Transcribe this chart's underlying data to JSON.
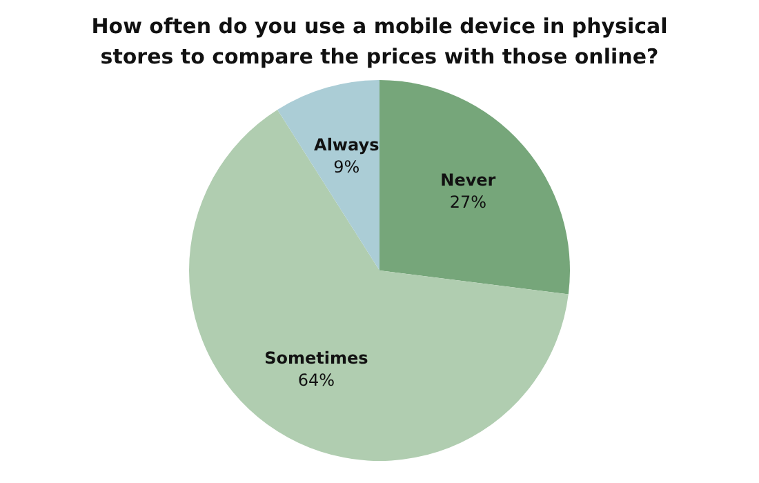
{
  "chart_data": {
    "type": "pie",
    "title": "How often do you use a mobile device in physical stores to compare the prices with those online?",
    "categories": [
      "Never",
      "Sometimes",
      "Always"
    ],
    "values": [
      27,
      64,
      9
    ],
    "value_labels": [
      "27%",
      "64%",
      "9%"
    ],
    "colors": [
      "#76a67a",
      "#b0cdb0",
      "#abcdd6"
    ],
    "legend": false
  }
}
